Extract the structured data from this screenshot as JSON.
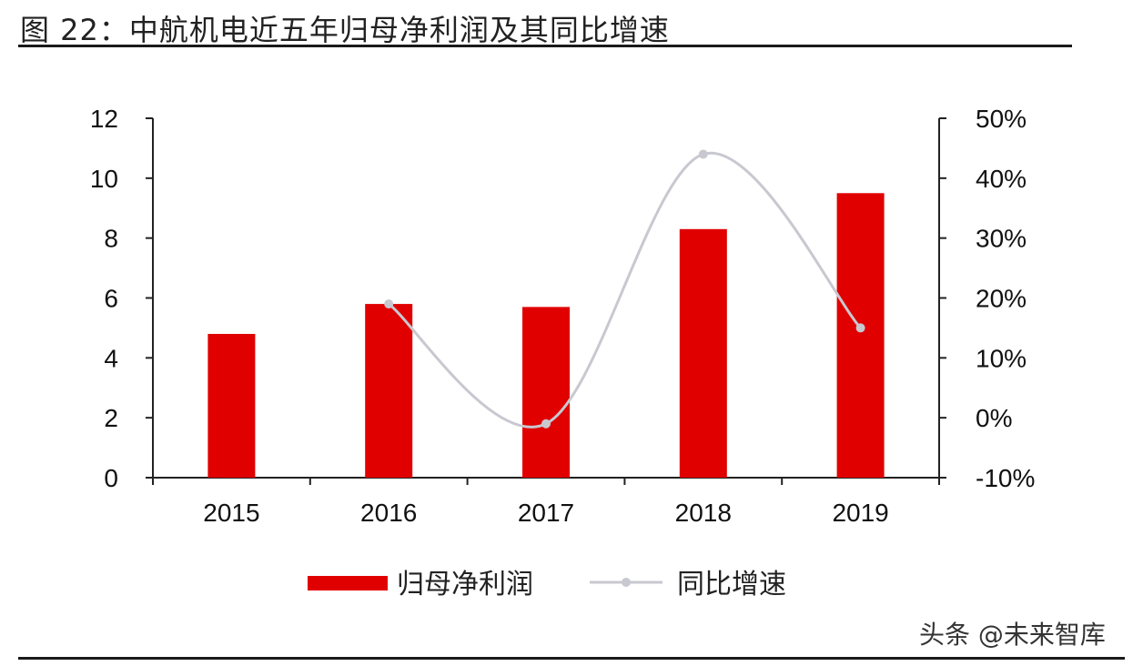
{
  "figure": {
    "title": "图  22：中航机电近五年归母净利润及其同比增速",
    "watermark": "头条 @未来智库"
  },
  "chart_data": {
    "type": "bar",
    "categories": [
      "2015",
      "2016",
      "2017",
      "2018",
      "2019"
    ],
    "series": [
      {
        "name": "归母净利润",
        "type": "bar",
        "axis": "left",
        "color": "#e00000",
        "values": [
          4.8,
          5.8,
          5.7,
          8.3,
          9.5
        ]
      },
      {
        "name": "同比增速",
        "type": "line",
        "axis": "right",
        "color": "#c8c8d0",
        "values": [
          null,
          0.19,
          -0.01,
          0.44,
          0.15
        ]
      }
    ],
    "left_axis": {
      "ylim": [
        0,
        12
      ],
      "ticks": [
        "0",
        "2",
        "4",
        "6",
        "8",
        "10",
        "12"
      ]
    },
    "right_axis": {
      "ylim": [
        -0.1,
        0.5
      ],
      "ticks": [
        "-10%",
        "0%",
        "10%",
        "20%",
        "30%",
        "40%",
        "50%"
      ]
    },
    "grid": false,
    "legend_position": "bottom"
  }
}
